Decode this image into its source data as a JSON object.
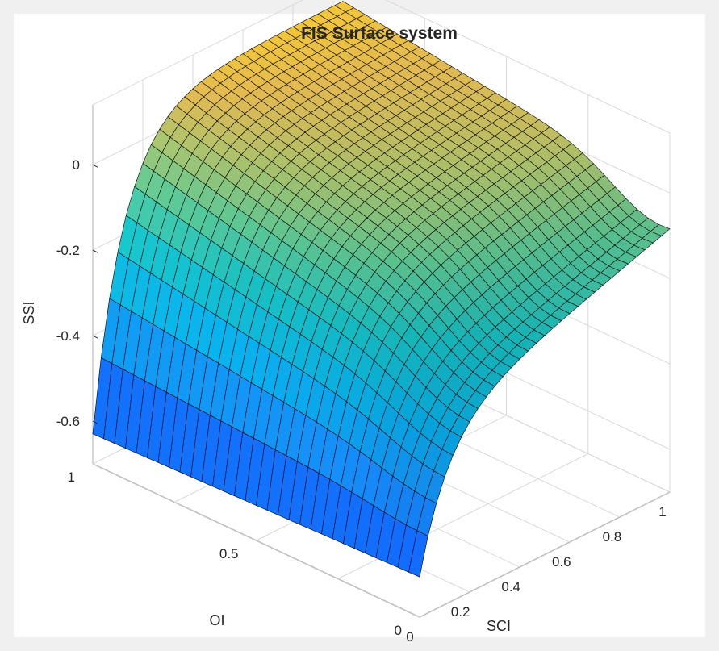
{
  "chart_data": {
    "type": "surface",
    "title": "FIS Surface system",
    "xlabel": "SCI",
    "ylabel": "OI",
    "zlabel": "SSI",
    "xlim": [
      0,
      1
    ],
    "ylim": [
      0,
      1
    ],
    "zlim": [
      -0.7,
      0.14
    ],
    "x_ticks": [
      "0",
      "0.2",
      "0.4",
      "0.6",
      "0.8",
      "1"
    ],
    "y_ticks": [
      "0",
      "0.5",
      "1"
    ],
    "z_ticks": [
      "0",
      "-0.2",
      "-0.4",
      "-0.6"
    ],
    "grid": true,
    "colormap": "parula",
    "grid_resolution": 30,
    "mesh_color": "#000000",
    "surface_model": "SSI(SCI,OI) = max(-0.72*exp(-9*SCI) - 0.25*OI, min(0.09, ridge)), ridge = 0.09 - 0.30*(1-SCI)*(1-OI) - 0.10*SCI*(1-OI)"
  }
}
